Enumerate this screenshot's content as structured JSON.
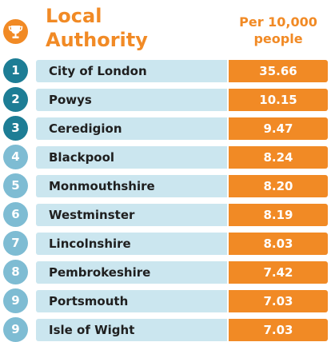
{
  "header": {
    "title_line1": "Local",
    "title_line2": "Authority",
    "value_line1": "Per 10,000",
    "value_line2": "people",
    "icon": "trophy-icon"
  },
  "colors": {
    "accent": "#f18a25",
    "rank_dark": "#1d7d95",
    "rank_light": "#7ebcd3",
    "name_bar": "#cbe6ef"
  },
  "chart_data": {
    "type": "table",
    "columns": [
      "Local Authority",
      "Per 10,000 people"
    ],
    "rows": [
      {
        "rank": "1",
        "name": "City of London",
        "value": "35.66"
      },
      {
        "rank": "2",
        "name": "Powys",
        "value": "10.15"
      },
      {
        "rank": "3",
        "name": "Ceredigion",
        "value": "9.47"
      },
      {
        "rank": "4",
        "name": "Blackpool",
        "value": "8.24"
      },
      {
        "rank": "5",
        "name": "Monmouthshire",
        "value": "8.20"
      },
      {
        "rank": "6",
        "name": "Westminster",
        "value": "8.19"
      },
      {
        "rank": "7",
        "name": "Lincolnshire",
        "value": "8.03"
      },
      {
        "rank": "8",
        "name": "Pembrokeshire",
        "value": "7.42"
      },
      {
        "rank": "9",
        "name": "Portsmouth",
        "value": "7.03"
      },
      {
        "rank": "9",
        "name": "Isle of Wight",
        "value": "7.03"
      }
    ]
  }
}
